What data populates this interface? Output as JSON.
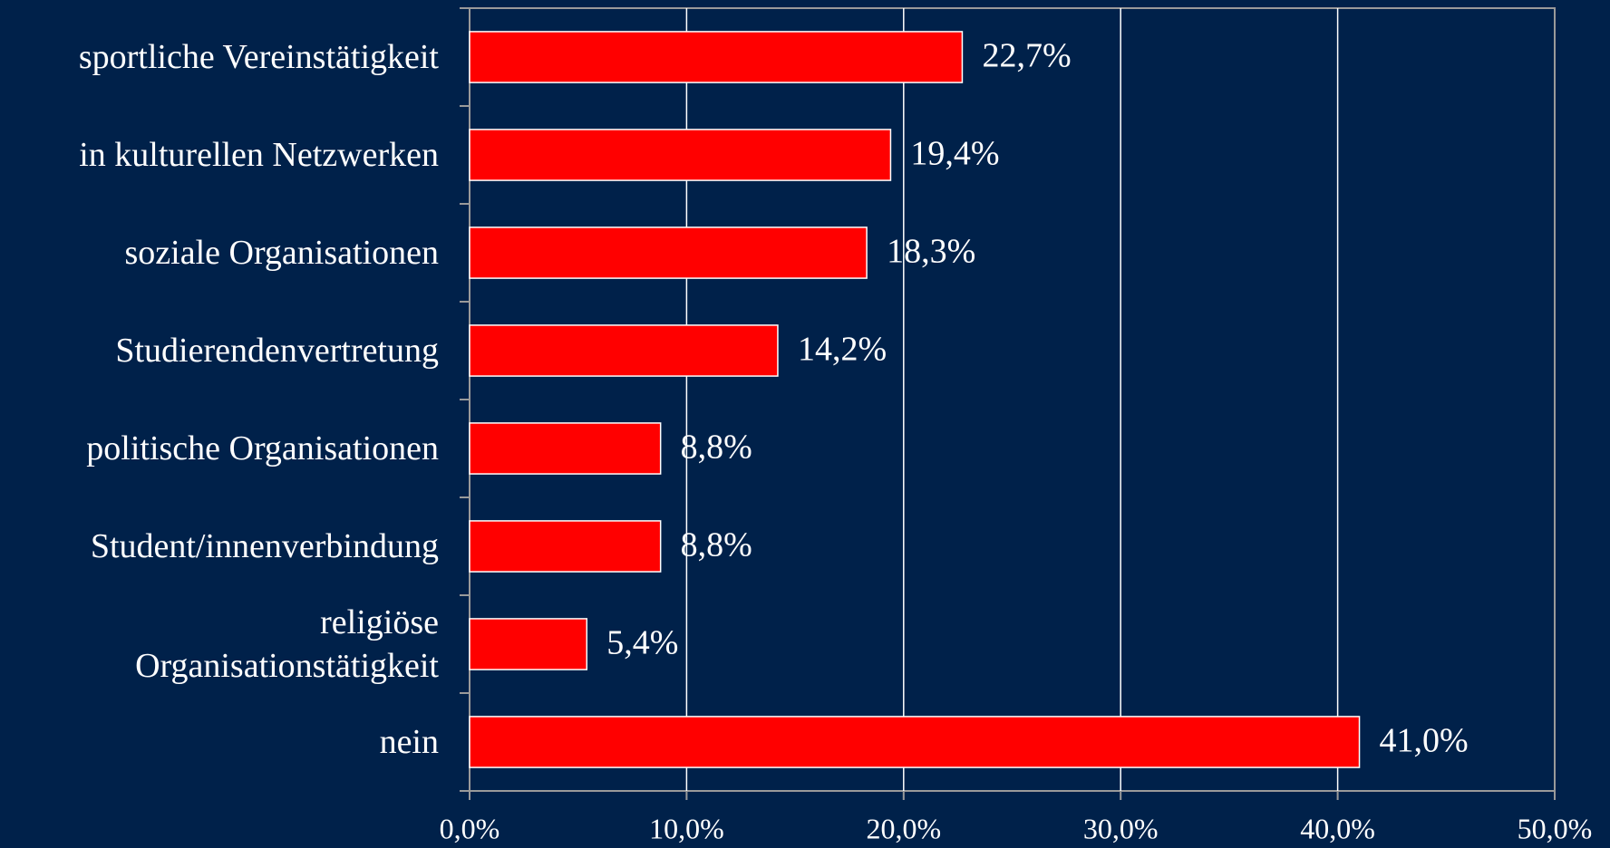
{
  "chart_data": {
    "type": "barh",
    "categories": [
      "sportliche Vereinstätigkeit",
      "in kulturellen Netzwerken",
      "soziale Organisationen",
      "Studierendenvertretung",
      "politische Organisationen",
      "Student/innenverbindung",
      "religiöse Organisationstätigkeit",
      "nein"
    ],
    "values": [
      22.7,
      19.4,
      18.3,
      14.2,
      8.8,
      8.8,
      5.4,
      41.0
    ],
    "value_labels": [
      "22,7%",
      "19,4%",
      "18,3%",
      "14,2%",
      "8,8%",
      "8,8%",
      "5,4%",
      "41,0%"
    ],
    "color": "#ff0000",
    "xlim": [
      0,
      50
    ],
    "xticks": [
      {
        "value": 0,
        "label": "0,0%"
      },
      {
        "value": 10,
        "label": "10,0%"
      },
      {
        "value": 20,
        "label": "20,0%"
      },
      {
        "value": 30,
        "label": "30,0%"
      },
      {
        "value": 40,
        "label": "40,0%"
      },
      {
        "value": 50,
        "label": "50,0%"
      }
    ],
    "grid": true
  }
}
